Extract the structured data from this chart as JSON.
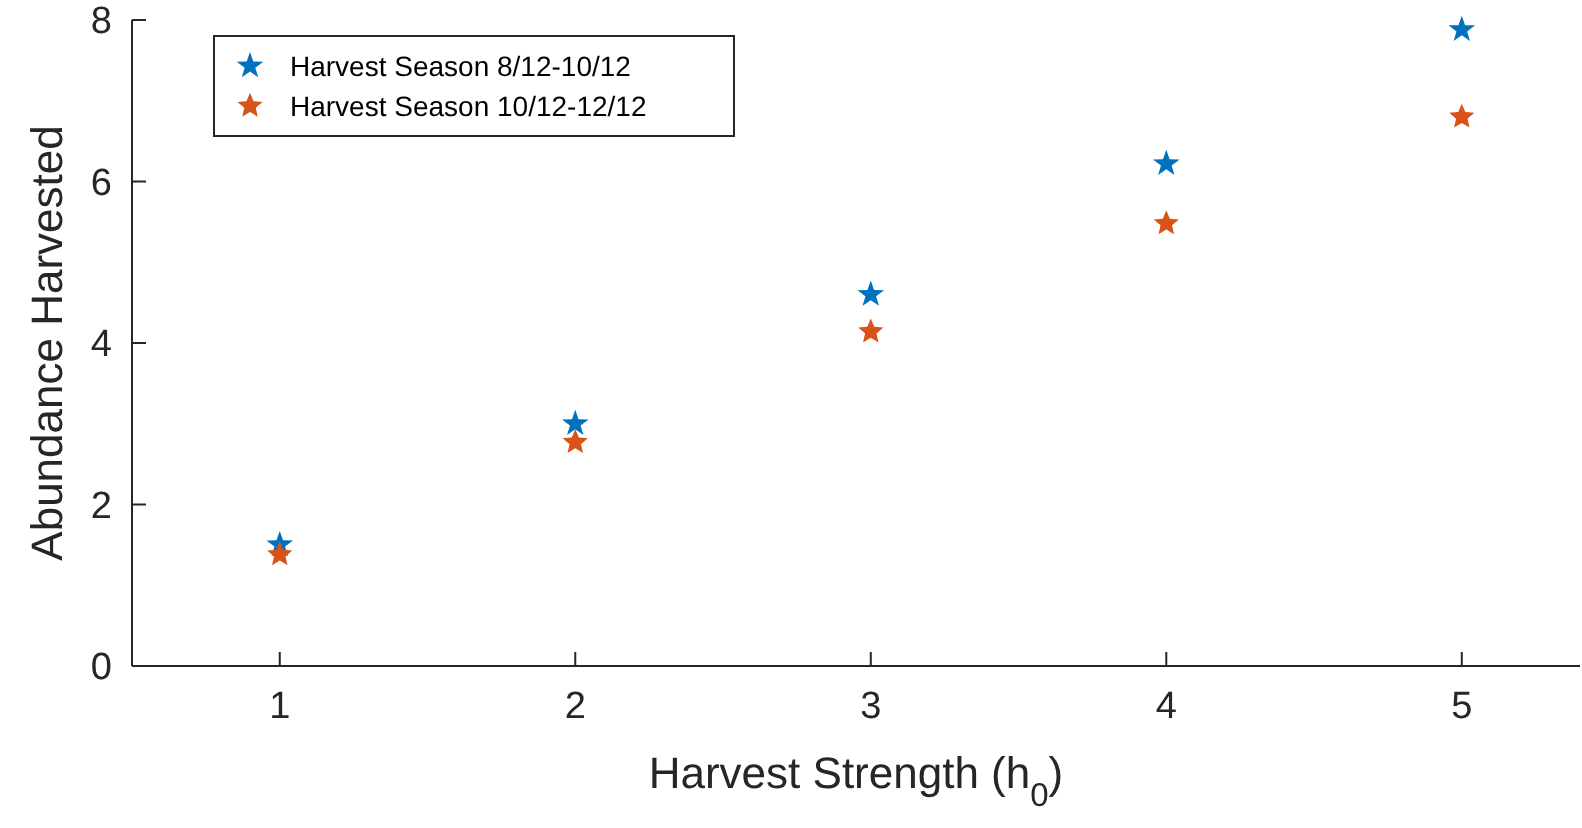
{
  "chart_data": {
    "type": "scatter",
    "xlabel": "Harvest Strength (h$_{0}$)",
    "ylabel": "Abundance Harvested",
    "x": [
      1,
      2,
      3,
      4,
      5
    ],
    "series": [
      {
        "name": "Harvest Season 8/12-10/12",
        "color": "#0072bd",
        "values": [
          1.5,
          3.0,
          4.6,
          6.22,
          7.88
        ]
      },
      {
        "name": "Harvest Season 10/12-12/12",
        "color": "#d95319",
        "values": [
          1.38,
          2.77,
          4.14,
          5.48,
          6.8
        ]
      }
    ],
    "xlim": [
      0.5,
      5.4
    ],
    "ylim": [
      0,
      8
    ],
    "xticks": [
      1,
      2,
      3,
      4,
      5
    ],
    "yticks": [
      0,
      2,
      4,
      6,
      8
    ],
    "grid": false,
    "legend": "top left",
    "marker": "star"
  }
}
